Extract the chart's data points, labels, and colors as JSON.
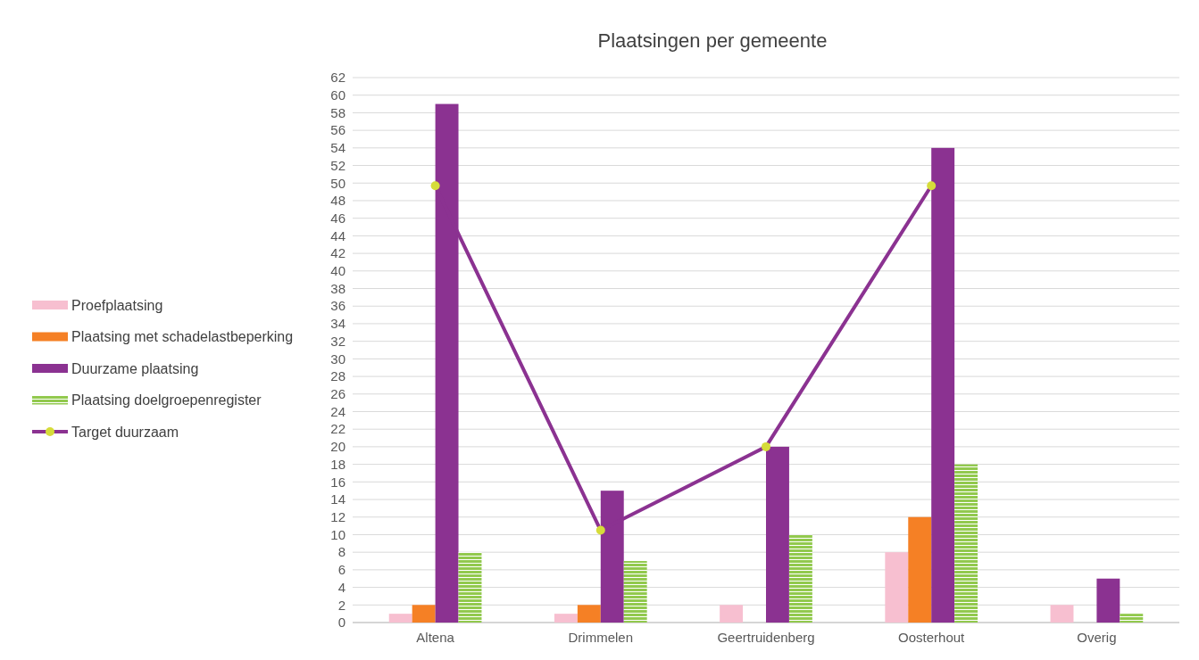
{
  "chart_data": {
    "type": "bar",
    "title": "Plaatsingen per gemeente",
    "categories": [
      "Altena",
      "Drimmelen",
      "Geertruidenberg",
      "Oosterhout",
      "Overig"
    ],
    "series": [
      {
        "name": "Proefplaatsing",
        "color": "#f7bfd0",
        "values": [
          1,
          1,
          2,
          8,
          2
        ]
      },
      {
        "name": "Plaatsing met schadelastbeperking",
        "color": "#f58025",
        "values": [
          2,
          2,
          null,
          12,
          null
        ]
      },
      {
        "name": "Duurzame plaatsing",
        "color": "#8b3291",
        "values": [
          59,
          15,
          20,
          54,
          5
        ]
      },
      {
        "name": "Plaatsing doelgroepenregister",
        "color": "#92c94e",
        "values": [
          8,
          7,
          10,
          18,
          1
        ]
      },
      {
        "name": "Target duurzaam",
        "type": "line",
        "color": "#8b3291",
        "marker": "circle",
        "values": [
          49.7,
          10.5,
          20,
          49.7,
          null
        ]
      }
    ],
    "ylim": [
      0,
      62
    ],
    "yticks": [
      0,
      2,
      4,
      6,
      8,
      10,
      12,
      14,
      16,
      18,
      20,
      22,
      24,
      26,
      28,
      30,
      32,
      34,
      36,
      38,
      40,
      42,
      44,
      46,
      48,
      50,
      52,
      54,
      56,
      58,
      60,
      62
    ],
    "grid": "y",
    "legend": "left"
  }
}
